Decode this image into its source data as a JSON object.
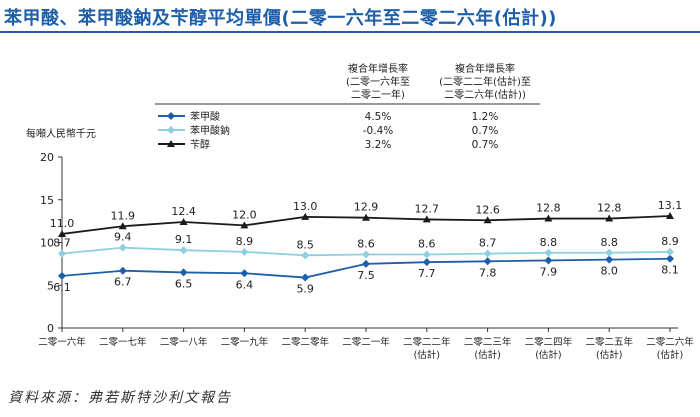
{
  "title": "苯甲酸、苯甲酸鈉及苄醇平均單價(二零一六年至二零二六年(估計))",
  "source": "資料來源：弗若斯特沙利文報告",
  "chart_data": {
    "type": "line",
    "ylabel": "每噸人民幣千元",
    "ylim": [
      0,
      20
    ],
    "yticks": [
      0,
      5,
      10,
      15,
      20
    ],
    "categories": [
      [
        "二零一六年"
      ],
      [
        "二零一七年"
      ],
      [
        "二零一八年"
      ],
      [
        "二零一九年"
      ],
      [
        "二零二零年"
      ],
      [
        "二零二一年"
      ],
      [
        "二零二二年",
        "(估計)"
      ],
      [
        "二零二三年",
        "(估計)"
      ],
      [
        "二零二四年",
        "(估計)"
      ],
      [
        "二零二五年",
        "(估計)"
      ],
      [
        "二零二六年",
        "(估計)"
      ]
    ],
    "legend": {
      "header1": [
        "複合年增長率",
        "(二零一六年至",
        "二零二一年)"
      ],
      "header2": [
        "複合年增長率",
        "(二零二二年(估計)至",
        "二零二六年(估計))"
      ]
    },
    "series": [
      {
        "name": "苯甲酸",
        "color": "#1f5fa8",
        "marker": "diamond",
        "values": [
          6.1,
          6.7,
          6.5,
          6.4,
          5.9,
          7.5,
          7.7,
          7.8,
          7.9,
          8.0,
          8.1
        ],
        "labels": [
          "6.1",
          "6.7",
          "6.5",
          "6.4",
          "5.9",
          "7.5",
          "7.7",
          "7.8",
          "7.9",
          "8.0",
          "8.1"
        ],
        "cagr1": "4.5%",
        "cagr2": "1.2%"
      },
      {
        "name": "苯甲酸鈉",
        "color": "#8ecfe0",
        "marker": "diamond",
        "values": [
          8.7,
          9.4,
          9.1,
          8.9,
          8.5,
          8.6,
          8.6,
          8.7,
          8.8,
          8.8,
          8.9
        ],
        "labels": [
          "8.7",
          "9.4",
          "9.1",
          "8.9",
          "8.5",
          "8.6",
          "8.6",
          "8.7",
          "8.8",
          "8.8",
          "8.9"
        ],
        "cagr1": "-0.4%",
        "cagr2": "0.7%"
      },
      {
        "name": "苄醇",
        "color": "#1a1a1a",
        "marker": "triangle",
        "values": [
          11.0,
          11.9,
          12.4,
          12.0,
          13.0,
          12.9,
          12.7,
          12.6,
          12.8,
          12.8,
          13.1
        ],
        "labels": [
          "11.0",
          "11.9",
          "12.4",
          "12.0",
          "13.0",
          "12.9",
          "12.7",
          "12.6",
          "12.8",
          "12.8",
          "13.1"
        ],
        "cagr1": "3.2%",
        "cagr2": "0.7%"
      }
    ]
  }
}
